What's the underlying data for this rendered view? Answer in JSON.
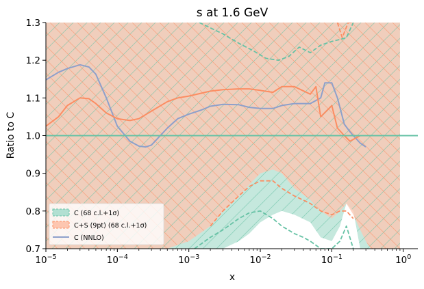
{
  "chart_data": {
    "type": "line",
    "title": "s at 1.6 GeV",
    "xlabel": "x",
    "ylabel": "Ratio to C",
    "xscale": "log",
    "xlim": [
      1e-05,
      1.6
    ],
    "ylim": [
      0.7,
      1.3
    ],
    "xticks": [
      {
        "value": 1e-05,
        "label": "10−5"
      },
      {
        "value": 0.0001,
        "label": "10−4"
      },
      {
        "value": 0.001,
        "label": "10−3"
      },
      {
        "value": 0.01,
        "label": "10−2"
      },
      {
        "value": 0.1,
        "label": "10−1"
      },
      {
        "value": 1,
        "label": "100"
      }
    ],
    "yticks": [
      0.7,
      0.8,
      0.9,
      1.0,
      1.1,
      1.2,
      1.3
    ],
    "grid": false,
    "legend_position": "lower-left",
    "colors": {
      "green": "#66c2a5",
      "green_fill": "#b2e0d2",
      "orange": "#fc8d62",
      "orange_fill": "#fdc6b0",
      "overlap": "#d6ad8d",
      "purple": "#8da0cb"
    },
    "series": [
      {
        "name": "C (68 c.l.+1σ)",
        "style": "band",
        "color": "green",
        "x": [
          1e-05,
          0.0003,
          0.0006,
          0.001,
          0.002,
          0.003,
          0.005,
          0.007,
          0.01,
          0.015,
          0.02,
          0.03,
          0.05,
          0.07,
          0.1,
          0.13,
          0.16,
          0.2,
          0.25,
          0.3,
          0.35,
          0.4,
          0.5,
          0.6,
          0.7,
          0.8,
          0.9
        ],
        "upper": [
          1.3,
          1.3,
          1.3,
          1.3,
          1.3,
          1.3,
          1.3,
          1.3,
          1.3,
          1.3,
          1.3,
          1.3,
          1.3,
          1.3,
          1.3,
          1.3,
          1.3,
          1.3,
          1.3,
          1.3,
          1.3,
          1.3,
          1.3,
          1.3,
          1.3,
          1.3,
          1.3
        ],
        "lower": [
          0.7,
          0.7,
          0.7,
          0.7,
          0.7,
          0.7,
          0.72,
          0.74,
          0.77,
          0.79,
          0.8,
          0.79,
          0.77,
          0.73,
          0.72,
          0.76,
          0.82,
          0.8,
          0.7,
          0.7,
          0.7,
          0.7,
          0.7,
          0.7,
          0.7,
          0.7,
          0.7
        ]
      },
      {
        "name": "C+S (9pt) (68 c.l.+1σ)",
        "style": "band",
        "color": "orange",
        "x": [
          1e-05,
          0.0001,
          0.0002,
          0.0003,
          0.0005,
          0.0007,
          0.001,
          0.002,
          0.003,
          0.005,
          0.007,
          0.01,
          0.015,
          0.02,
          0.03,
          0.05,
          0.07,
          0.1,
          0.13,
          0.16,
          0.2,
          0.25,
          0.3,
          0.35,
          0.4,
          0.5,
          0.6,
          0.7,
          0.8,
          0.9
        ],
        "upper": [
          1.3,
          1.3,
          1.3,
          1.3,
          1.3,
          1.3,
          1.3,
          1.3,
          1.3,
          1.3,
          1.3,
          1.3,
          1.3,
          1.3,
          1.3,
          1.3,
          1.3,
          1.3,
          1.3,
          1.3,
          1.3,
          1.3,
          1.3,
          1.3,
          1.3,
          1.3,
          1.3,
          1.3,
          1.3,
          1.3
        ],
        "lower": [
          0.7,
          0.7,
          0.7,
          0.7,
          0.7,
          0.71,
          0.72,
          0.76,
          0.8,
          0.84,
          0.87,
          0.9,
          0.91,
          0.9,
          0.86,
          0.83,
          0.8,
          0.78,
          0.8,
          0.82,
          0.79,
          0.75,
          0.72,
          0.7,
          0.7,
          0.7,
          0.7,
          0.7,
          0.7,
          0.7
        ]
      },
      {
        "name": "C (NNLO)",
        "style": "line",
        "color": "purple",
        "x": [
          1e-05,
          1.5e-05,
          2e-05,
          3e-05,
          4e-05,
          5e-05,
          7e-05,
          0.0001,
          0.00015,
          0.0002,
          0.00025,
          0.0003,
          0.0005,
          0.0007,
          0.001,
          0.0015,
          0.002,
          0.003,
          0.005,
          0.007,
          0.01,
          0.015,
          0.02,
          0.03,
          0.05,
          0.07,
          0.08,
          0.1,
          0.12,
          0.15,
          0.18,
          0.2,
          0.25,
          0.3
        ],
        "y": [
          1.148,
          1.168,
          1.178,
          1.188,
          1.182,
          1.163,
          1.1,
          1.025,
          0.985,
          0.972,
          0.97,
          0.975,
          1.02,
          1.045,
          1.057,
          1.068,
          1.078,
          1.083,
          1.082,
          1.075,
          1.072,
          1.072,
          1.08,
          1.085,
          1.085,
          1.1,
          1.14,
          1.14,
          1.1,
          1.03,
          1.01,
          1.0,
          0.98,
          0.97
        ]
      },
      {
        "name": "C+S (9pt) central",
        "style": "line",
        "color": "orange",
        "x": [
          1e-05,
          1.5e-05,
          2e-05,
          3e-05,
          4e-05,
          5e-05,
          7e-05,
          0.0001,
          0.00015,
          0.0002,
          0.0003,
          0.0005,
          0.0007,
          0.001,
          0.002,
          0.003,
          0.005,
          0.007,
          0.01,
          0.015,
          0.02,
          0.03,
          0.05,
          0.06,
          0.07,
          0.1,
          0.12,
          0.15,
          0.18,
          0.2,
          0.25
        ],
        "y": [
          1.025,
          1.05,
          1.08,
          1.1,
          1.098,
          1.085,
          1.06,
          1.045,
          1.04,
          1.045,
          1.065,
          1.09,
          1.1,
          1.105,
          1.118,
          1.122,
          1.124,
          1.124,
          1.12,
          1.115,
          1.13,
          1.13,
          1.11,
          1.13,
          1.05,
          1.08,
          1.02,
          1.0,
          0.985,
          0.99,
          1.0
        ]
      },
      {
        "name": "C central",
        "style": "line",
        "color": "green",
        "x": [
          1e-05,
          1.6
        ],
        "y": [
          1.0,
          1.0
        ]
      },
      {
        "name": "C upper",
        "style": "dashed",
        "color": "green",
        "x": [
          0.0014,
          0.003,
          0.005,
          0.008,
          0.012,
          0.018,
          0.025,
          0.035,
          0.05,
          0.07,
          0.1,
          0.13,
          0.16,
          0.2
        ],
        "y": [
          1.3,
          1.27,
          1.245,
          1.225,
          1.205,
          1.2,
          1.21,
          1.235,
          1.22,
          1.24,
          1.25,
          1.255,
          1.26,
          1.3
        ]
      },
      {
        "name": "C lower",
        "style": "dashed",
        "color": "green",
        "x": [
          0.0012,
          0.002,
          0.003,
          0.005,
          0.007,
          0.01,
          0.015,
          0.02,
          0.03,
          0.04,
          0.05,
          0.07,
          0.1,
          0.13,
          0.16,
          0.2
        ],
        "y": [
          0.7,
          0.73,
          0.75,
          0.78,
          0.795,
          0.8,
          0.78,
          0.76,
          0.74,
          0.73,
          0.72,
          0.7,
          0.7,
          0.72,
          0.76,
          0.7
        ]
      },
      {
        "name": "C+S upper",
        "style": "dashed",
        "color": "orange",
        "x": [
          0.12,
          0.14,
          0.17,
          0.2
        ],
        "y": [
          1.3,
          1.26,
          1.3,
          1.3
        ]
      },
      {
        "name": "C+S lower",
        "style": "dashed",
        "color": "orange",
        "x": [
          0.002,
          0.003,
          0.005,
          0.007,
          0.01,
          0.015,
          0.02,
          0.03,
          0.05,
          0.07,
          0.1,
          0.13,
          0.16,
          0.2
        ],
        "y": [
          0.76,
          0.8,
          0.84,
          0.865,
          0.88,
          0.88,
          0.86,
          0.84,
          0.82,
          0.8,
          0.79,
          0.8,
          0.8,
          0.78
        ]
      }
    ],
    "legend": [
      {
        "label": "C (68 c.l.+1σ)",
        "style": "band",
        "color": "green"
      },
      {
        "label": "C+S (9pt) (68 c.l.+1σ)",
        "style": "band",
        "color": "orange"
      },
      {
        "label": "C (NNLO)",
        "style": "line",
        "color": "purple"
      }
    ]
  }
}
